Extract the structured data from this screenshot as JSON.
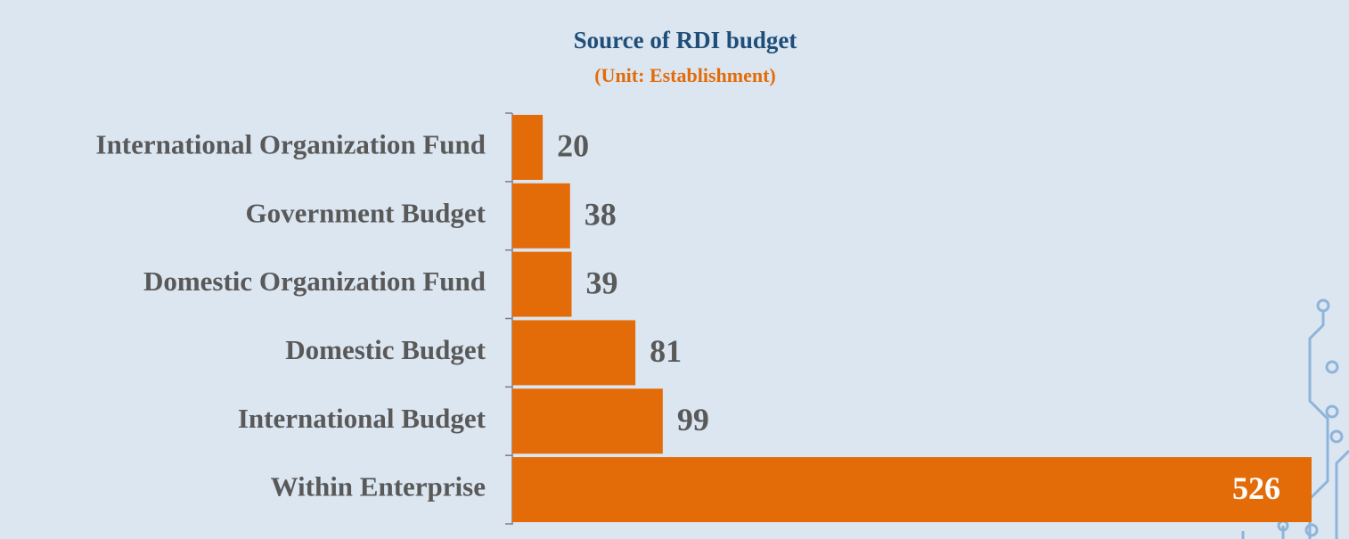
{
  "chart_data": {
    "type": "bar",
    "orientation": "horizontal",
    "title": "Source of RDI budget",
    "subtitle": "(Unit: Establishment)",
    "categories": [
      "International Organization Fund",
      "Government Budget",
      "Domestic Organization Fund",
      "Domestic Budget",
      "International Budget",
      "Within Enterprise"
    ],
    "values": [
      20,
      38,
      39,
      81,
      99,
      526
    ],
    "color": "#e36c09"
  }
}
